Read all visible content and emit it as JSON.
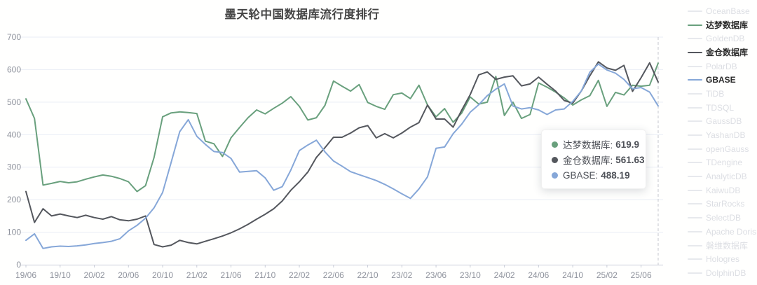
{
  "title": "墨天轮中国数据库流行度排行",
  "palette": {
    "green": "#69a07d",
    "dark": "#54575d",
    "blue": "#86a7d8",
    "inactive_line": "#e7e9ed",
    "inactive_text": "#dcdee3",
    "grid": "#e9edf5",
    "axis": "#c9cdd8",
    "axis_label": "#8f939d"
  },
  "tooltip": {
    "rows": [
      {
        "name": "达梦数据库:",
        "value": "619.9",
        "color": "#69a07d"
      },
      {
        "name": "金仓数据库:",
        "value": "561.63",
        "color": "#54575d"
      },
      {
        "name": "GBASE:",
        "value": "488.19",
        "color": "#86a7d8"
      }
    ]
  },
  "legend": {
    "items": [
      {
        "label": "OceanBase",
        "active": false
      },
      {
        "label": "达梦数据库",
        "active": true,
        "color": "#69a07d"
      },
      {
        "label": "GoldenDB",
        "active": false
      },
      {
        "label": "金仓数据库",
        "active": true,
        "color": "#54575d"
      },
      {
        "label": "PolarDB",
        "active": false
      },
      {
        "label": "GBASE",
        "active": true,
        "color": "#86a7d8"
      },
      {
        "label": "TiDB",
        "active": false
      },
      {
        "label": "TDSQL",
        "active": false
      },
      {
        "label": "GaussDB",
        "active": false
      },
      {
        "label": "YashanDB",
        "active": false
      },
      {
        "label": "openGauss",
        "active": false
      },
      {
        "label": "TDengine",
        "active": false
      },
      {
        "label": "AnalyticDB",
        "active": false
      },
      {
        "label": "KaiwuDB",
        "active": false
      },
      {
        "label": "StarRocks",
        "active": false
      },
      {
        "label": "SelectDB",
        "active": false
      },
      {
        "label": "Apache Doris",
        "active": false
      },
      {
        "label": "磐维数据库",
        "active": false
      },
      {
        "label": "Hologres",
        "active": false
      },
      {
        "label": "DolphinDB",
        "active": false
      }
    ]
  },
  "chart_data": {
    "type": "line",
    "title": "墨天轮中国数据库流行度排行",
    "ylim": [
      0,
      700
    ],
    "y_ticks": [
      0,
      100,
      200,
      300,
      400,
      500,
      600,
      700
    ],
    "x_tick_every": 4,
    "legend_position": "right",
    "grid": true,
    "cursor_index": 74,
    "months": [
      "19/06",
      "19/07",
      "19/08",
      "19/09",
      "19/10",
      "19/11",
      "19/12",
      "20/01",
      "20/02",
      "20/03",
      "20/04",
      "20/05",
      "20/06",
      "20/07",
      "20/08",
      "20/09",
      "20/10",
      "20/11",
      "20/12",
      "21/01",
      "21/02",
      "21/03",
      "21/04",
      "21/05",
      "21/06",
      "21/07",
      "21/08",
      "21/09",
      "21/10",
      "21/11",
      "21/12",
      "22/01",
      "22/02",
      "22/03",
      "22/04",
      "22/05",
      "22/06",
      "22/07",
      "22/08",
      "22/09",
      "22/10",
      "22/11",
      "22/12",
      "23/01",
      "23/02",
      "23/03",
      "23/04",
      "23/05",
      "23/06",
      "23/07",
      "23/08",
      "23/09",
      "23/10",
      "23/11",
      "23/12",
      "24/01",
      "24/02",
      "24/03",
      "24/04",
      "24/05",
      "24/06",
      "24/07",
      "24/08",
      "24/09",
      "24/10",
      "24/11",
      "24/12",
      "25/01",
      "25/02",
      "25/03",
      "25/04",
      "25/05",
      "25/06",
      "25/07",
      "25/08"
    ],
    "series": [
      {
        "name": "达梦数据库",
        "color": "#69a07d",
        "values": [
          510,
          450,
          245,
          250,
          256,
          252,
          255,
          263,
          270,
          276,
          272,
          265,
          255,
          225,
          243,
          330,
          455,
          467,
          470,
          468,
          465,
          380,
          372,
          333,
          390,
          422,
          452,
          476,
          464,
          481,
          497,
          517,
          487,
          445,
          452,
          490,
          565,
          549,
          534,
          554,
          499,
          487,
          478,
          523,
          528,
          511,
          552,
          491,
          455,
          480,
          438,
          466,
          516,
          494,
          500,
          579,
          459,
          500,
          450,
          462,
          559,
          546,
          531,
          513,
          491,
          507,
          520,
          567,
          487,
          530,
          522,
          552,
          549,
          552,
          619.9
        ]
      },
      {
        "name": "金仓数据库",
        "color": "#54575d",
        "values": [
          225,
          130,
          172,
          150,
          156,
          150,
          145,
          152,
          145,
          140,
          148,
          138,
          135,
          140,
          150,
          62,
          55,
          60,
          75,
          68,
          64,
          72,
          80,
          88,
          98,
          110,
          124,
          140,
          155,
          172,
          196,
          229,
          255,
          285,
          330,
          360,
          392,
          392,
          405,
          421,
          428,
          390,
          403,
          390,
          405,
          423,
          437,
          491,
          448,
          448,
          423,
          475,
          523,
          584,
          593,
          570,
          577,
          581,
          550,
          556,
          577,
          555,
          534,
          505,
          497,
          534,
          581,
          624,
          605,
          598,
          613,
          533,
          575,
          621,
          561.63
        ]
      },
      {
        "name": "GBASE",
        "color": "#86a7d8",
        "values": [
          75,
          95,
          50,
          55,
          57,
          56,
          58,
          61,
          65,
          68,
          72,
          80,
          104,
          121,
          143,
          175,
          222,
          315,
          409,
          446,
          395,
          370,
          348,
          345,
          327,
          285,
          287,
          289,
          267,
          229,
          240,
          291,
          351,
          368,
          383,
          347,
          319,
          303,
          286,
          277,
          268,
          259,
          247,
          233,
          218,
          204,
          233,
          270,
          358,
          362,
          403,
          432,
          469,
          492,
          520,
          540,
          556,
          488,
          479,
          483,
          476,
          462,
          476,
          479,
          502,
          534,
          592,
          617,
          599,
          589,
          570,
          541,
          545,
          531,
          488.19
        ]
      }
    ]
  }
}
